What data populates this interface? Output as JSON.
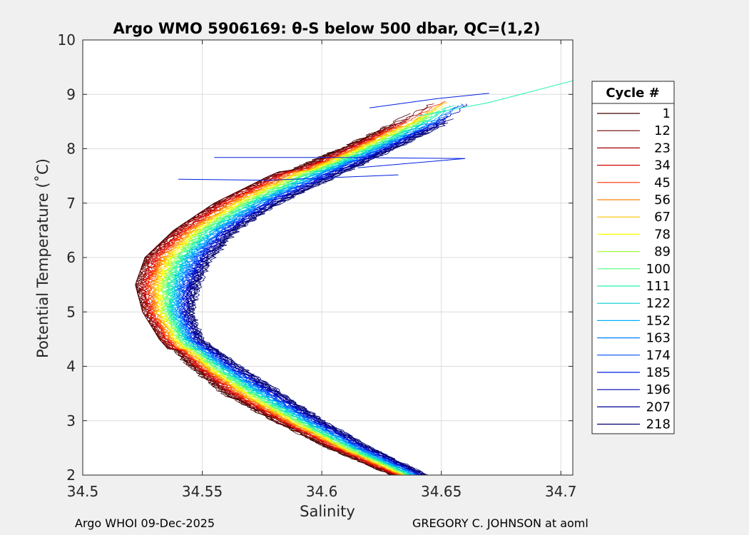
{
  "chart_data": {
    "type": "line",
    "title": "Argo WMO 5906169: θ-S below 500 dbar,  QC=(1,2)",
    "xlabel": "Salinity",
    "ylabel": "Potential Temperature (˚C)",
    "xlim": [
      34.5,
      34.705
    ],
    "ylim": [
      2,
      10
    ],
    "xticks": [
      34.5,
      34.55,
      34.6,
      34.65,
      34.7
    ],
    "xtick_labels": [
      "34.5",
      "34.55",
      "34.6",
      "34.65",
      "34.7"
    ],
    "yticks": [
      2,
      3,
      4,
      5,
      6,
      7,
      8,
      9,
      10
    ],
    "ytick_labels": [
      "2",
      "3",
      "4",
      "5",
      "6",
      "7",
      "8",
      "9",
      "10"
    ],
    "grid": true,
    "legend": {
      "title": "Cycle #",
      "placement": "right-outside",
      "entries": [
        "1",
        "12",
        "23",
        "34",
        "45",
        "56",
        "67",
        "78",
        "89",
        "100",
        "111",
        "122",
        "152",
        "163",
        "174",
        "185",
        "196",
        "207",
        "218"
      ]
    },
    "colors": [
      "#400000",
      "#700000",
      "#a00000",
      "#d00000",
      "#ff3000",
      "#ff8000",
      "#ffc000",
      "#ffff00",
      "#a0ff40",
      "#50ff80",
      "#20f0b0",
      "#00d0d0",
      "#00b0ff",
      "#0080ff",
      "#0050ff",
      "#0020e0",
      "#0000b0",
      "#000090",
      "#000070"
    ],
    "envelope": {
      "theta": [
        2.0,
        2.5,
        3.0,
        3.5,
        4.0,
        4.5,
        5.0,
        5.5,
        6.0,
        6.5,
        7.0,
        7.5,
        8.0,
        8.5,
        9.0
      ],
      "salinity_min": [
        34.627,
        34.6,
        34.577,
        34.556,
        34.542,
        34.532,
        34.525,
        34.522,
        34.526,
        34.538,
        34.555,
        34.578,
        34.605,
        34.628,
        34.65
      ],
      "salinity_max": [
        34.645,
        34.622,
        34.602,
        34.585,
        34.567,
        34.551,
        34.547,
        34.55,
        34.556,
        34.566,
        34.584,
        34.608,
        34.632,
        34.655,
        34.67
      ]
    },
    "outlier_lines": [
      {
        "x": [
          34.555,
          34.605,
          34.66,
          34.615
        ],
        "y": [
          7.84,
          7.84,
          7.82,
          7.65
        ]
      },
      {
        "x": [
          34.54,
          34.578,
          34.632
        ],
        "y": [
          7.44,
          7.42,
          7.52
        ]
      },
      {
        "x": [
          34.62,
          34.648,
          34.67
        ],
        "y": [
          8.75,
          8.92,
          9.02
        ]
      }
    ],
    "max_salinity_trace": {
      "x": [
        34.64,
        34.67,
        34.705
      ],
      "y": [
        8.6,
        8.85,
        9.25
      ]
    }
  },
  "footer": {
    "left": "Argo WHOI 09-Dec-2025",
    "right": "GREGORY C. JOHNSON at aoml"
  }
}
